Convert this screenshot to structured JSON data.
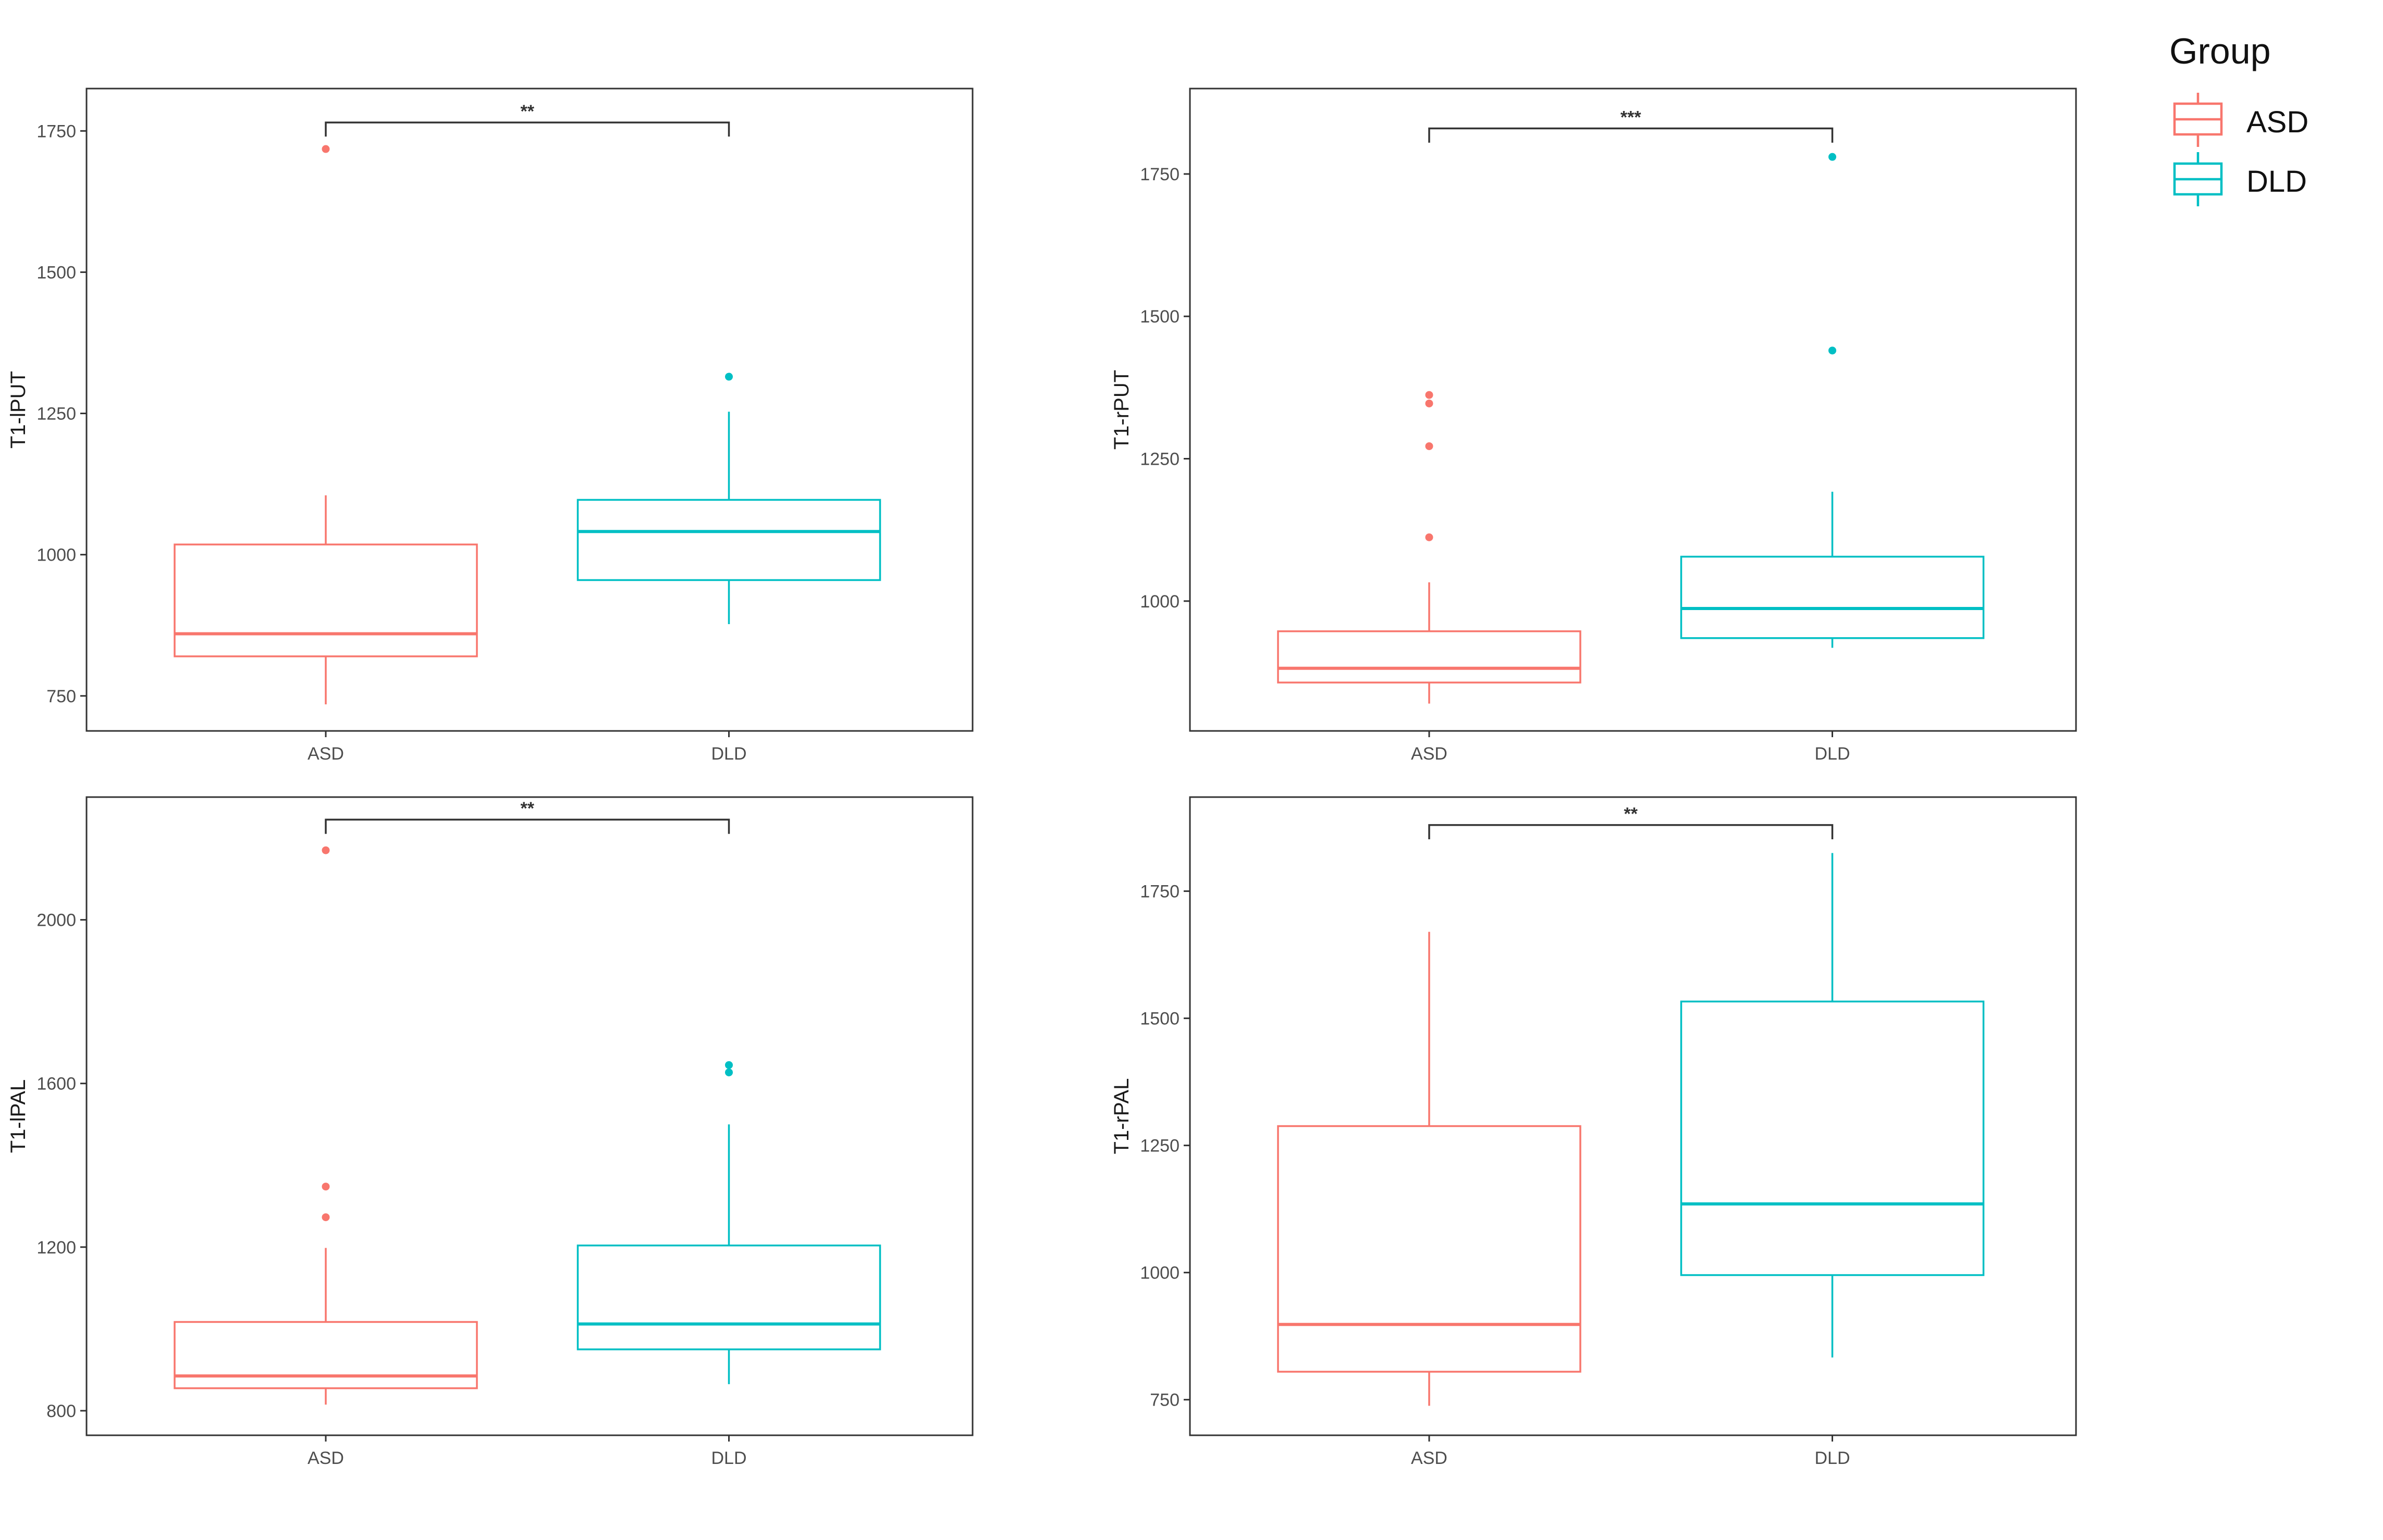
{
  "legend": {
    "title": "Group",
    "entries": [
      {
        "label": "ASD",
        "color": "#F8766D"
      },
      {
        "label": "DLD",
        "color": "#00BFC4"
      }
    ]
  },
  "colors": {
    "ASD": "#F8766D",
    "DLD": "#00BFC4",
    "axis": "#333333",
    "text": "#4D4D4D"
  },
  "chart_data": [
    {
      "type": "boxplot",
      "ylabel": "T1-lPUT",
      "categories": [
        "ASD",
        "DLD"
      ],
      "ylim": [
        688,
        1825
      ],
      "yticks": [
        750,
        1000,
        1250,
        1500,
        1750
      ],
      "boxes": [
        {
          "group": "ASD",
          "lower_whisker": 735,
          "q1": 820,
          "median": 860,
          "q3": 1018,
          "upper_whisker": 1105,
          "outliers": [
            1718
          ]
        },
        {
          "group": "DLD",
          "lower_whisker": 877,
          "q1": 955,
          "median": 1041,
          "q3": 1097,
          "upper_whisker": 1253,
          "outliers": [
            1315
          ]
        }
      ],
      "significance": {
        "label": "**",
        "y": 1765,
        "drop_to": 1740
      }
    },
    {
      "type": "boxplot",
      "ylabel": "T1-rPUT",
      "categories": [
        "ASD",
        "DLD"
      ],
      "ylim": [
        772,
        1900
      ],
      "yticks": [
        1000,
        1250,
        1500,
        1750
      ],
      "boxes": [
        {
          "group": "ASD",
          "lower_whisker": 820,
          "q1": 857,
          "median": 882,
          "q3": 947,
          "upper_whisker": 1033,
          "outliers": [
            1112,
            1272,
            1347,
            1362
          ]
        },
        {
          "group": "DLD",
          "lower_whisker": 918,
          "q1": 935,
          "median": 987,
          "q3": 1078,
          "upper_whisker": 1192,
          "outliers": [
            1440,
            1780
          ]
        }
      ],
      "significance": {
        "label": "***",
        "y": 1830,
        "drop_to": 1805
      }
    },
    {
      "type": "boxplot",
      "ylabel": "T1-lPAL",
      "categories": [
        "ASD",
        "DLD"
      ],
      "ylim": [
        740,
        2300
      ],
      "yticks": [
        800,
        1200,
        1600,
        2000
      ],
      "boxes": [
        {
          "group": "ASD",
          "lower_whisker": 815,
          "q1": 855,
          "median": 885,
          "q3": 1017,
          "upper_whisker": 1198,
          "outliers": [
            1273,
            1348,
            2170
          ]
        },
        {
          "group": "DLD",
          "lower_whisker": 865,
          "q1": 950,
          "median": 1012,
          "q3": 1204,
          "upper_whisker": 1500,
          "outliers": [
            1627,
            1645
          ]
        }
      ],
      "significance": {
        "label": "**",
        "y": 2245,
        "drop_to": 2210
      }
    },
    {
      "type": "boxplot",
      "ylabel": "T1-rPAL",
      "categories": [
        "ASD",
        "DLD"
      ],
      "ylim": [
        680,
        1935
      ],
      "yticks": [
        750,
        1000,
        1250,
        1500,
        1750
      ],
      "boxes": [
        {
          "group": "ASD",
          "lower_whisker": 738,
          "q1": 805,
          "median": 898,
          "q3": 1288,
          "upper_whisker": 1670,
          "outliers": []
        },
        {
          "group": "DLD",
          "lower_whisker": 833,
          "q1": 995,
          "median": 1135,
          "q3": 1533,
          "upper_whisker": 1825,
          "outliers": []
        }
      ],
      "significance": {
        "label": "**",
        "y": 1880,
        "drop_to": 1852
      }
    }
  ]
}
